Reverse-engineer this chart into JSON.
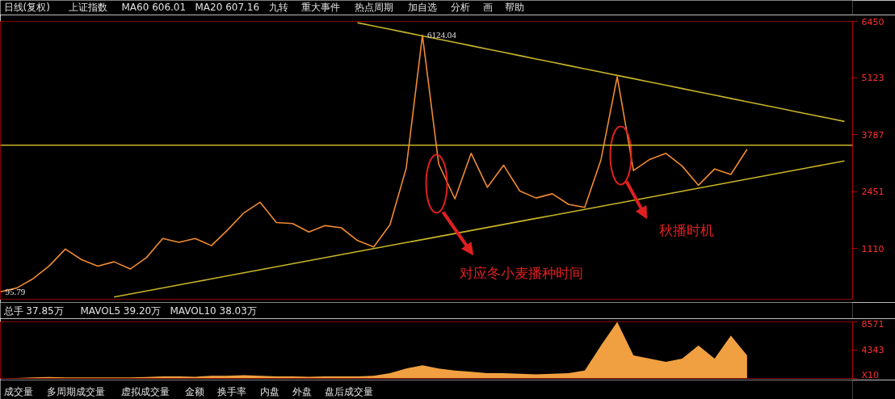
{
  "chart_data": [
    {
      "type": "line",
      "ylim": [
        -80,
        6450
      ],
      "yticks": [
        1110,
        2451,
        3787,
        5123,
        6450
      ],
      "tick_labels": "y",
      "grid": false,
      "categories": [
        null,
        null,
        null,
        null,
        null,
        null,
        null,
        null,
        null,
        null,
        null,
        null,
        null,
        null,
        null,
        null,
        null,
        null,
        null,
        null,
        null,
        null,
        null,
        null,
        null,
        null,
        null,
        null,
        null,
        null,
        null,
        null,
        null,
        null,
        null,
        null,
        null,
        null,
        null,
        null,
        null,
        null,
        null,
        null,
        null,
        null,
        null,
        null,
        null,
        null,
        null,
        null,
        null
      ],
      "series": [
        {
          "color": "#f08a30",
          "values": [
            95.79,
            183,
            400,
            700,
            1100,
            850,
            700,
            800,
            630,
            900,
            1350,
            1260,
            1350,
            1180,
            1550,
            1950,
            2200,
            1722,
            1700,
            1500,
            1650,
            1600,
            1300,
            1150,
            1670,
            3000,
            6124,
            3100,
            2278,
            3350,
            2550,
            3070,
            2464,
            2300,
            2400,
            2150,
            2080,
            3200,
            5150,
            2946,
            3205,
            3350,
            3050,
            2600,
            2983,
            2853,
            3447,
            null,
            null,
            null,
            null,
            null,
            null
          ]
        },
        {
          "type": "line",
          "color": "#c8b428",
          "values": [
            null,
            null,
            null,
            null,
            null,
            null,
            null,
            null,
            null,
            null,
            null,
            null,
            null,
            null,
            null,
            null,
            null,
            null,
            null,
            null,
            null,
            null,
            6419,
            6342,
            6264,
            6187,
            6110,
            6032,
            5955,
            5878,
            5800,
            5723,
            5645,
            5568,
            5491,
            5413,
            5336,
            5259,
            5181,
            5104,
            5027,
            4949,
            4872,
            4794,
            4717,
            4640,
            4562,
            4485,
            4408,
            4330,
            4253,
            4176,
            4098
          ]
        },
        {
          "type": "line",
          "color": "#c8b428",
          "values": [
            null,
            null,
            null,
            null,
            null,
            null,
            null,
            -27,
            44,
            115,
            186,
            257,
            328,
            399,
            470,
            541,
            612,
            683,
            755,
            826,
            897,
            968,
            1039,
            1110,
            1181,
            1252,
            1323,
            1394,
            1465,
            1536,
            1607,
            1678,
            1749,
            1820,
            1891,
            1962,
            2033,
            2104,
            2175,
            2246,
            2318,
            2389,
            2460,
            2531,
            2602,
            2673,
            2744,
            2815,
            2886,
            2957,
            3028,
            3099,
            3170
          ]
        }
      ],
      "ref_lines": [
        {
          "axis": "y",
          "value": 3540,
          "color": "#c8b428"
        }
      ],
      "annotations": [
        "日线(复权)",
        "上证指数",
        "MA60 606.01",
        "MA20 607.16",
        "九转",
        "重大事件",
        "热点周期",
        "加自选",
        "分析",
        "画",
        "帮助",
        {
          "text": "6124.04",
          "y": 6124
        },
        {
          "text": "95.79",
          "y": 95.79
        },
        "对应冬小麦播种时间",
        "秋播时机"
      ]
    },
    {
      "type": "area",
      "ylim": [
        0,
        8571
      ],
      "yticks": [
        {
          "value": 0,
          "label": "X10"
        },
        4343,
        8571
      ],
      "tick_labels": "y",
      "grid": false,
      "categories": [
        null,
        null,
        null,
        null,
        null,
        null,
        null,
        null,
        null,
        null,
        null,
        null,
        null,
        null,
        null,
        null,
        null,
        null,
        null,
        null,
        null,
        null,
        null,
        null,
        null,
        null,
        null,
        null,
        null,
        null,
        null,
        null,
        null,
        null,
        null,
        null,
        null,
        null,
        null,
        null,
        null,
        null,
        null,
        null,
        null,
        null,
        null,
        null,
        null,
        null,
        null,
        null,
        null
      ],
      "series": [
        {
          "color": "#f0a040",
          "values": [
            0,
            50,
            150,
            200,
            150,
            150,
            150,
            150,
            150,
            200,
            300,
            300,
            250,
            400,
            400,
            500,
            400,
            300,
            300,
            250,
            300,
            300,
            300,
            400,
            800,
            1500,
            2000,
            1500,
            1200,
            1000,
            800,
            800,
            700,
            600,
            700,
            800,
            1200,
            5000,
            8571,
            3500,
            3000,
            2500,
            3000,
            5000,
            3000,
            6500,
            3500,
            null,
            null,
            null,
            null,
            null,
            null
          ]
        }
      ],
      "annotations": [
        "总手 37.85万",
        "MAVOL5 39.20万",
        "MAVOL10 38.03万"
      ]
    },
    {
      "type": "other",
      "annotations": [
        "成交量",
        "多周期成交量",
        "虚拟成交量",
        "金额",
        "换手率",
        "内盘",
        "外盘",
        "盘后成交量"
      ]
    }
  ]
}
